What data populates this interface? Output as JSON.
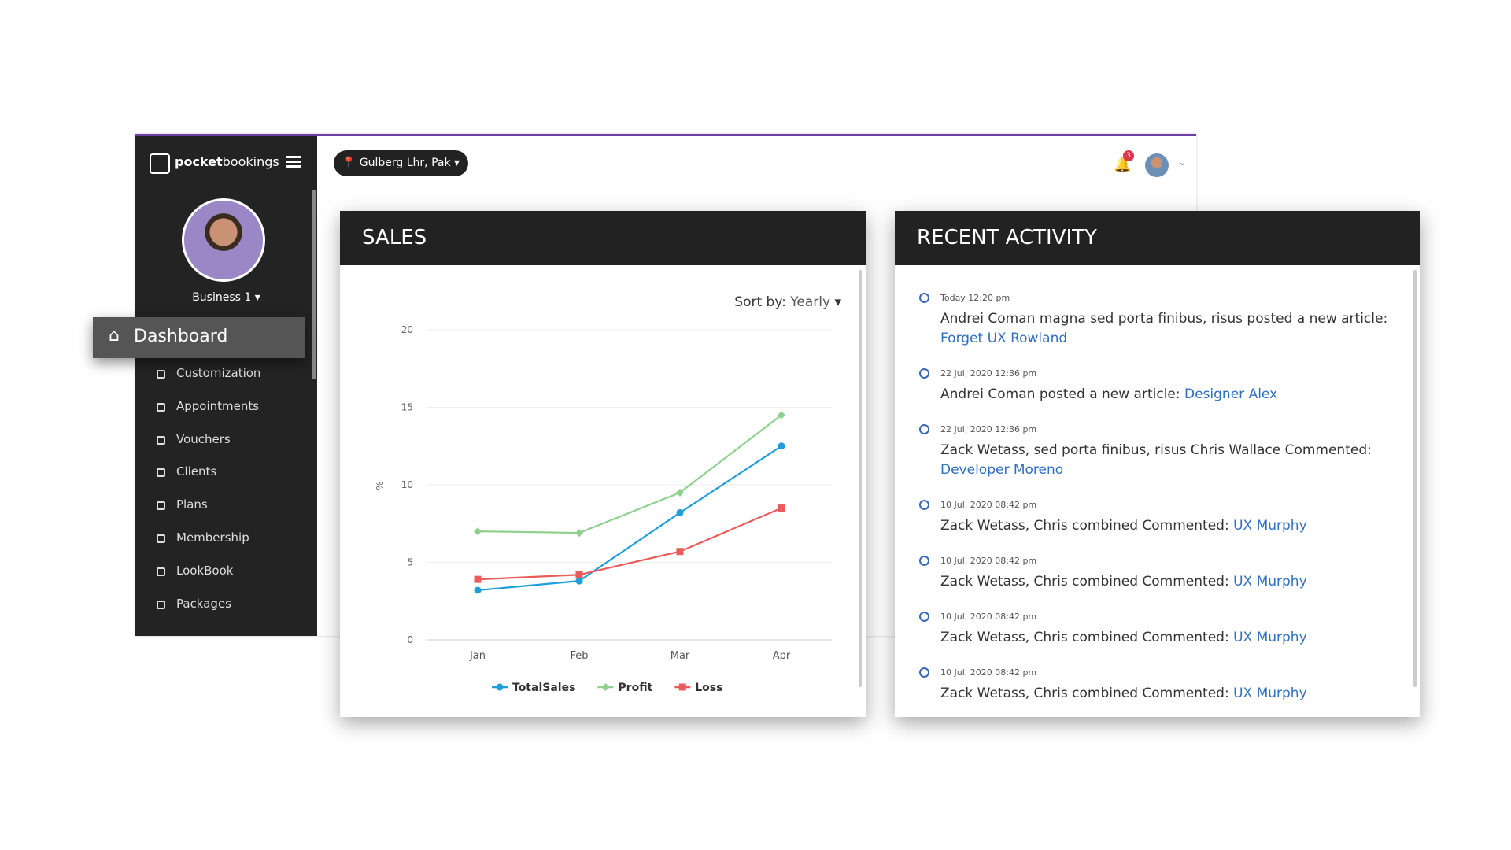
{
  "brand": {
    "bold": "pocket",
    "rest": "bookings"
  },
  "topbar": {
    "location": "Gulberg Lhr, Pak",
    "notifications": "3"
  },
  "sidebar": {
    "business": "Business 1",
    "active": "Dashboard",
    "items": [
      "Customization",
      "Appointments",
      "Vouchers",
      "Clients",
      "Plans",
      "Membership",
      "LookBook",
      "Packages"
    ]
  },
  "sales": {
    "title": "SALES",
    "sort_label": "Sort by:",
    "sort_value": "Yearly"
  },
  "chart_data": {
    "type": "line",
    "y_label": "%",
    "categories": [
      "Jan",
      "Feb",
      "Mar",
      "Apr"
    ],
    "series": [
      {
        "name": "TotalSales",
        "color": "#1f9fd9",
        "marker": "circle",
        "values": [
          3.2,
          3.8,
          8.2,
          12.5
        ]
      },
      {
        "name": "Profit",
        "color": "#8fd08e",
        "marker": "diamond",
        "values": [
          7,
          6.9,
          9.5,
          14.5
        ]
      },
      {
        "name": "Loss",
        "color": "#e85c5c",
        "marker": "square",
        "values": [
          3.9,
          4.2,
          5.7,
          8.5
        ]
      }
    ],
    "ylim": [
      0,
      20
    ],
    "yticks": [
      0,
      5,
      10,
      15,
      20
    ],
    "grid": true
  },
  "activity": {
    "title": "RECENT ACTIVITY",
    "items": [
      {
        "time": "Today 12:20 pm",
        "text": "Andrei Coman magna sed porta finibus, risus posted a new article:",
        "link": "Forget UX Rowland"
      },
      {
        "time": "22 Jul, 2020 12:36 pm",
        "text": "Andrei Coman posted a new article:",
        "link": "Designer Alex"
      },
      {
        "time": "22 Jul, 2020 12:36 pm",
        "text": "Zack Wetass, sed porta finibus, risus Chris Wallace Commented:",
        "link": "Developer Moreno"
      },
      {
        "time": "10 Jul, 2020 08:42 pm",
        "text": "Zack Wetass, Chris combined Commented:",
        "link": "UX Murphy"
      },
      {
        "time": "10 Jul, 2020 08:42 pm",
        "text": "Zack Wetass, Chris combined Commented:",
        "link": "UX Murphy"
      },
      {
        "time": "10 Jul, 2020 08:42 pm",
        "text": "Zack Wetass, Chris combined Commented:",
        "link": "UX Murphy"
      },
      {
        "time": "10 Jul, 2020 08:42 pm",
        "text": "Zack Wetass, Chris combined Commented:",
        "link": "UX Murphy"
      }
    ]
  }
}
